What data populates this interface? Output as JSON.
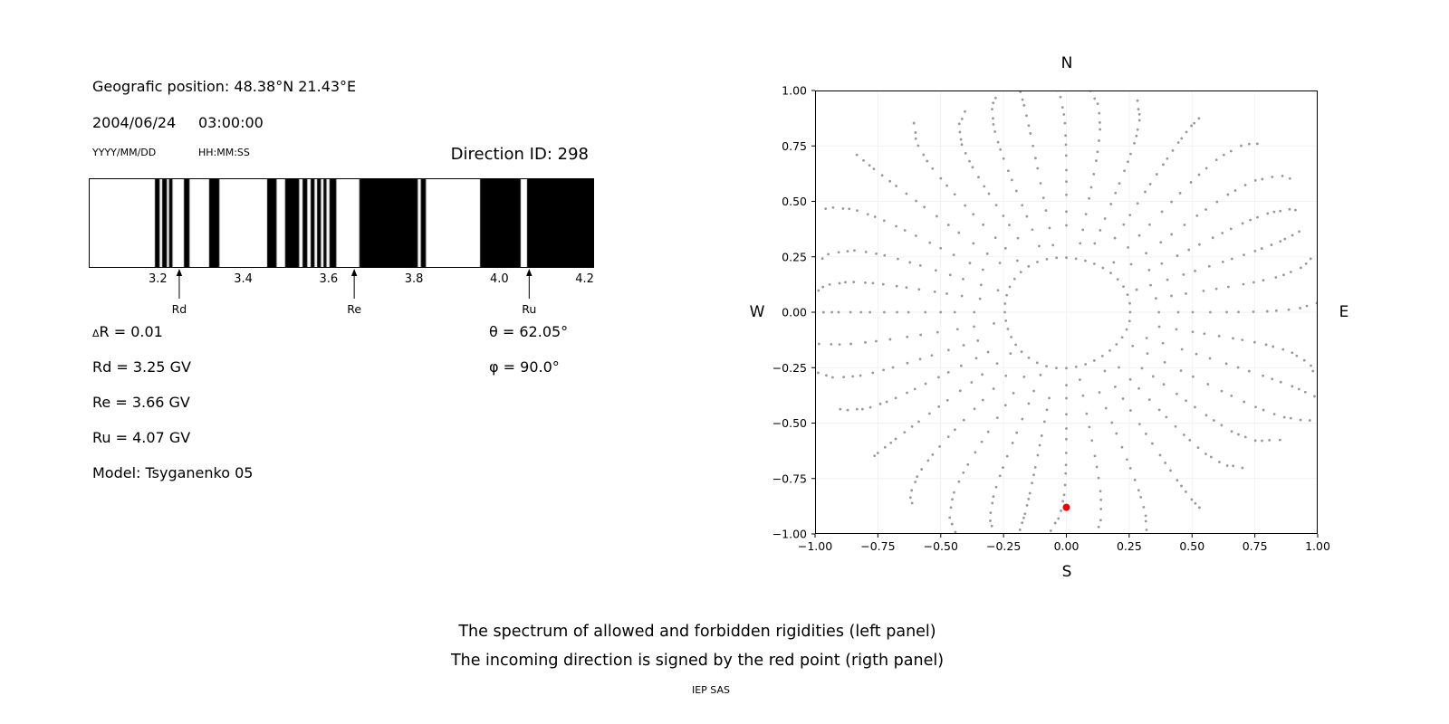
{
  "header": {
    "geographic_position": "Geografic position: 48.38°N 21.43°E",
    "date": "2004/06/24",
    "time": "03:00:00",
    "date_format_label": "YYYY/MM/DD",
    "time_format_label": "HH:MM:SS",
    "direction_id": "Direction ID: 298"
  },
  "parameters": {
    "delta_prefix": "Δ",
    "delta_rest": "R = 0.01",
    "rd": "Rd = 3.25 GV",
    "re": "Re = 3.66 GV",
    "ru": "Ru = 4.07 GV",
    "model": "Model: Tsyganenko 05",
    "theta": "θ = 62.05°",
    "phi": "φ = 90.0°"
  },
  "captions": {
    "line1": "The spectrum of allowed and forbidden rigidities (left panel)",
    "line2": "The incoming direction is signed by the red point (rigth panel)",
    "credit": "IEP SAS"
  },
  "chart_data": [
    {
      "id": "rigidity-spectrum",
      "type": "bar",
      "xlim": [
        3.04,
        4.22
      ],
      "xticks": [
        3.2,
        3.4,
        3.6,
        3.8,
        4.0,
        4.2
      ],
      "allowed_color": "#000000",
      "forbidden_color": "#ffffff",
      "allowed_bands_gv": [
        [
          3.193,
          3.204
        ],
        [
          3.21,
          3.221
        ],
        [
          3.226,
          3.234
        ],
        [
          3.261,
          3.274
        ],
        [
          3.32,
          3.344
        ],
        [
          3.456,
          3.478
        ],
        [
          3.498,
          3.531
        ],
        [
          3.539,
          3.55
        ],
        [
          3.558,
          3.567
        ],
        [
          3.573,
          3.582
        ],
        [
          3.588,
          3.595
        ],
        [
          3.602,
          3.618
        ],
        [
          3.672,
          3.809
        ],
        [
          3.816,
          3.828
        ],
        [
          3.955,
          4.05
        ],
        [
          4.065,
          4.22
        ]
      ],
      "markers": [
        {
          "label": "Rd",
          "value_gv": 3.25
        },
        {
          "label": "Re",
          "value_gv": 3.66
        },
        {
          "label": "Ru",
          "value_gv": 4.07
        }
      ],
      "delta_r_gv": 0.01
    },
    {
      "id": "incoming-direction-map",
      "type": "scatter",
      "xlim": [
        -1.0,
        1.0
      ],
      "ylim": [
        -1.0,
        1.0
      ],
      "xticks": [
        -1.0,
        -0.75,
        -0.5,
        -0.25,
        0.0,
        0.25,
        0.5,
        0.75,
        1.0
      ],
      "yticks": [
        -1.0,
        -0.75,
        -0.5,
        -0.25,
        0.0,
        0.25,
        0.5,
        0.75,
        1.0
      ],
      "compass": {
        "top": "N",
        "bottom": "S",
        "left": "W",
        "right": "E"
      },
      "gray_point_color": "#999999",
      "red_point": {
        "x": 0.0,
        "y": -0.88,
        "color": "#ee0000"
      },
      "pattern": {
        "spokes": {
          "count": 36,
          "start_deg": 0,
          "step_deg": 10,
          "r_inner": 0.34,
          "r_outer": 1.04,
          "points_per_spoke": 16,
          "tip_bend_deg": 6
        },
        "inner_ring": {
          "radius": 0.25,
          "points": 40
        }
      },
      "grid": true
    }
  ]
}
